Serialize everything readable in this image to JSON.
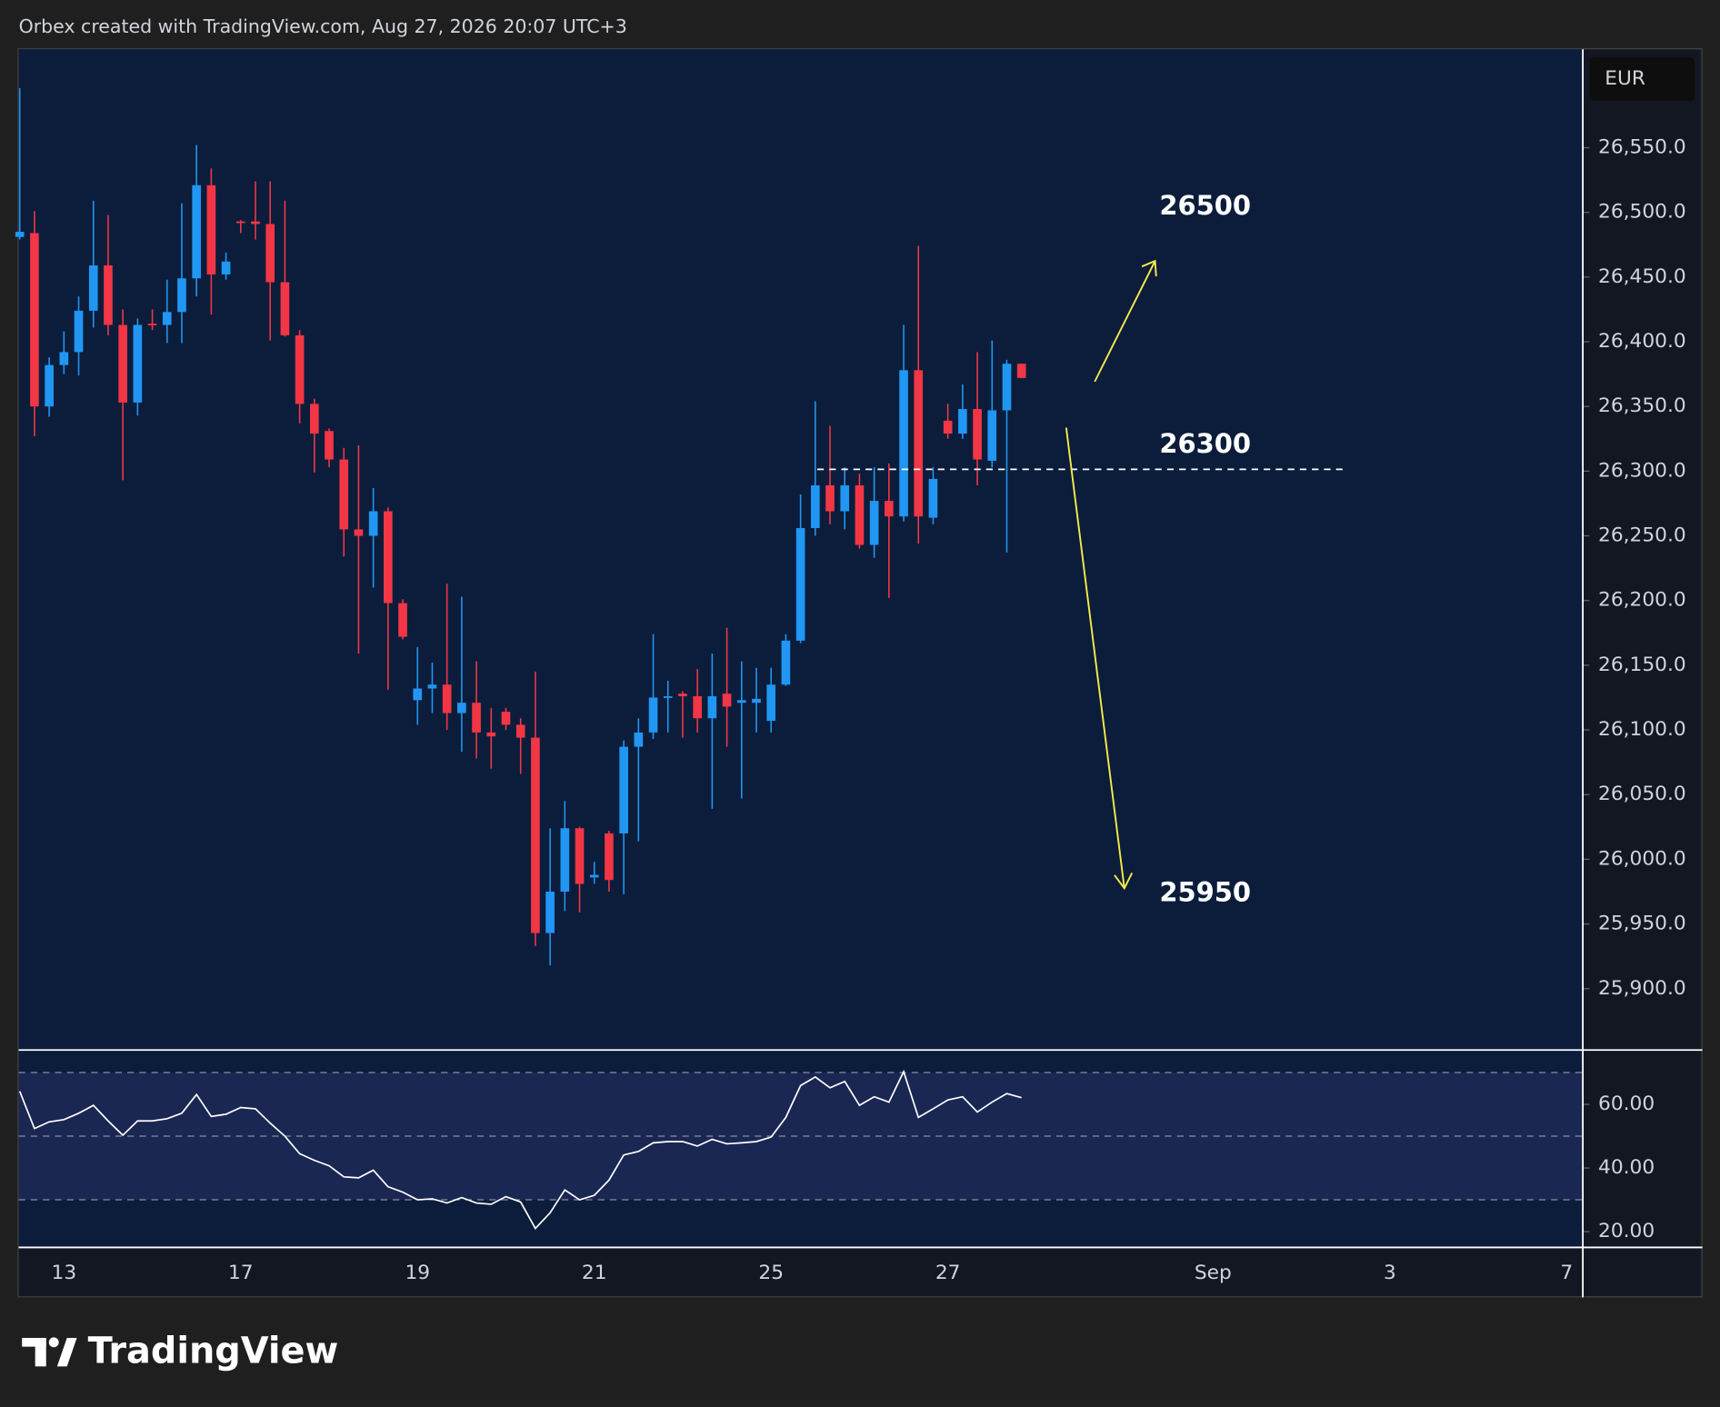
{
  "header": {
    "title": "Orbex created with TradingView.com, Aug 27, 2026 20:07 UTC+3"
  },
  "chart_data": [
    {
      "type": "candlestick",
      "currency": "EUR",
      "open": [
        26481,
        26484,
        26350,
        26382,
        26392,
        26424,
        26459,
        26413,
        26353,
        26414,
        26413,
        26423,
        26449,
        26521,
        26452,
        26493,
        26493,
        26491,
        26446,
        26405,
        26352,
        26331,
        26309,
        26255,
        26250,
        26269,
        26198,
        26123,
        26132,
        26135,
        26113,
        26121,
        26098,
        26114,
        26104,
        26094,
        25943,
        25975,
        26024,
        25986,
        26020,
        26020,
        26087,
        26098,
        26125,
        26128,
        26126,
        26109,
        26128,
        26121,
        26121,
        26107,
        26135,
        26169,
        26256,
        26289,
        26269,
        26289,
        26243,
        26277,
        26265,
        26378,
        26264,
        26339,
        26329,
        26348,
        26308,
        26347,
        26383
      ],
      "high": [
        26596,
        26501,
        26388,
        26408,
        26435,
        26509,
        26498,
        26425,
        26418,
        26425,
        26448,
        26507,
        26552,
        26534,
        26469,
        26494,
        26524,
        26524,
        26509,
        26409,
        26356,
        26333,
        26318,
        26320,
        26287,
        26272,
        26201,
        26164,
        26152,
        26213,
        26203,
        26153,
        26117,
        26117,
        26109,
        26145,
        26024,
        26045,
        26025,
        25998,
        26022,
        26092,
        26109,
        26174,
        26138,
        26130,
        26147,
        26159,
        26179,
        26153,
        26148,
        26148,
        26174,
        26282,
        26354,
        26335,
        26303,
        26298,
        26303,
        26306,
        26413,
        26474,
        26303,
        26352,
        26367,
        26392,
        26401,
        26386,
        26383
      ],
      "low": [
        26479,
        26327,
        26342,
        26375,
        26374,
        26411,
        26405,
        26293,
        26343,
        26409,
        26399,
        26399,
        26435,
        26421,
        26448,
        26484,
        26479,
        26401,
        26404,
        26337,
        26299,
        26303,
        26234,
        26159,
        26210,
        26131,
        26170,
        26104,
        26113,
        26100,
        26083,
        26078,
        26070,
        26100,
        26066,
        25933,
        25918,
        25960,
        25959,
        25981,
        25975,
        25973,
        26014,
        26093,
        26098,
        26094,
        26098,
        26039,
        26087,
        26047,
        26098,
        26098,
        26134,
        26167,
        26250,
        26259,
        26255,
        26240,
        26233,
        26202,
        26261,
        26244,
        26259,
        26325,
        26325,
        26289,
        26303,
        26237,
        26372
      ],
      "close": [
        26485,
        26350,
        26382,
        26392,
        26424,
        26459,
        26413,
        26353,
        26413,
        26413,
        26423,
        26449,
        26521,
        26452,
        26462,
        26492,
        26491,
        26446,
        26405,
        26352,
        26329,
        26309,
        26255,
        26250,
        26269,
        26198,
        26172,
        26132,
        26135,
        26113,
        26121,
        26098,
        26095,
        26104,
        26094,
        25943,
        25975,
        26024,
        25981,
        25988,
        25984,
        26087,
        26098,
        26125,
        26126,
        26126,
        26109,
        26126,
        26118,
        26123,
        26124,
        26135,
        26169,
        26256,
        26289,
        26269,
        26289,
        26243,
        26277,
        26265,
        26378,
        26265,
        26294,
        26329,
        26348,
        26309,
        26347,
        26383,
        26372
      ],
      "up_color": "#2196f3",
      "down_color": "#f23645",
      "ylim": [
        25853,
        26626
      ],
      "yticks": [
        {
          "value": 25900,
          "label": "25,900.0"
        },
        {
          "value": 25950,
          "label": "25,950.0"
        },
        {
          "value": 26000,
          "label": "26,000.0"
        },
        {
          "value": 26050,
          "label": "26,050.0"
        },
        {
          "value": 26100,
          "label": "26,100.0"
        },
        {
          "value": 26150,
          "label": "26,150.0"
        },
        {
          "value": 26200,
          "label": "26,200.0"
        },
        {
          "value": 26250,
          "label": "26,250.0"
        },
        {
          "value": 26300,
          "label": "26,300.0"
        },
        {
          "value": 26350,
          "label": "26,350.0"
        },
        {
          "value": 26400,
          "label": "26,400.0"
        },
        {
          "value": 26450,
          "label": "26,450.0"
        },
        {
          "value": 26500,
          "label": "26,500.0"
        },
        {
          "value": 26550,
          "label": "26,550.0"
        }
      ],
      "xlim": [
        -0.07,
        106.1
      ],
      "xticks": [
        {
          "value": 3,
          "label": "13"
        },
        {
          "value": 15,
          "label": "17"
        },
        {
          "value": 27,
          "label": "19"
        },
        {
          "value": 39,
          "label": "21"
        },
        {
          "value": 51,
          "label": "25"
        },
        {
          "value": 63,
          "label": "27"
        },
        {
          "value": 81,
          "label": "Sep"
        },
        {
          "value": 93,
          "label": "3"
        },
        {
          "value": 105,
          "label": "7"
        }
      ],
      "annotations": [
        "26500",
        "26300",
        "25950"
      ]
    },
    {
      "type": "line",
      "color": "#ffffff",
      "values": [
        64.1,
        52.4,
        54.5,
        55.2,
        57.2,
        59.7,
        54.8,
        50.3,
        54.8,
        54.8,
        55.5,
        57.2,
        63.1,
        56.2,
        56.9,
        59.0,
        58.6,
        54.1,
        50.0,
        44.5,
        42.4,
        40.7,
        37.2,
        36.9,
        39.3,
        34.1,
        32.4,
        30.0,
        30.3,
        29.0,
        30.7,
        29.0,
        28.6,
        31.0,
        29.3,
        21.0,
        25.9,
        33.1,
        30.0,
        31.4,
        36.2,
        44.1,
        45.2,
        47.9,
        48.3,
        48.3,
        46.9,
        49.0,
        47.6,
        47.9,
        48.3,
        49.7,
        55.9,
        65.9,
        68.6,
        65.2,
        67.2,
        59.7,
        62.4,
        60.7,
        70.3,
        55.9,
        58.6,
        61.4,
        62.4,
        57.6,
        60.7,
        63.4,
        62.1
      ],
      "ylim": [
        15.2,
        76.9
      ],
      "yticks": [
        {
          "value": 20,
          "label": "20.00"
        },
        {
          "value": 40,
          "label": "40.00"
        },
        {
          "value": 60,
          "label": "60.00"
        }
      ],
      "band": [
        30,
        70
      ],
      "hlines": [
        30,
        50,
        70
      ]
    }
  ],
  "footer": {
    "brand": "TradingView"
  }
}
